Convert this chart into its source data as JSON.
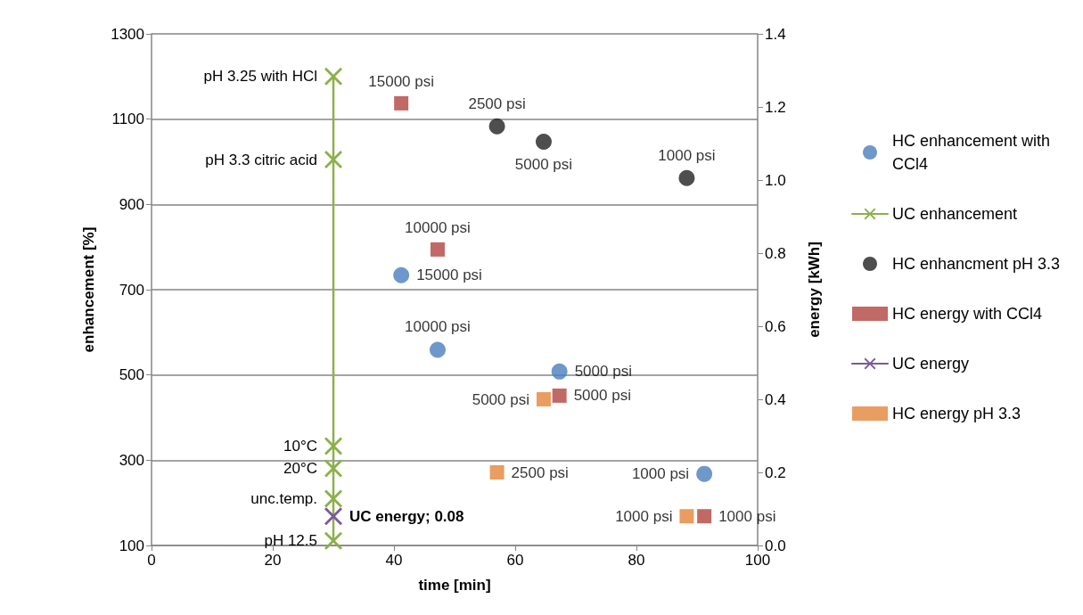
{
  "chart_data": {
    "type": "scatter",
    "xlabel": "time [min]",
    "ylabel": "enhancement [%]",
    "y2label": "energy [kWh]",
    "xlim": [
      0,
      100
    ],
    "xticks": [
      0,
      20,
      40,
      60,
      80,
      100
    ],
    "ylim": [
      100,
      1300
    ],
    "yticks": [
      100,
      300,
      500,
      700,
      900,
      1100,
      1300
    ],
    "y2lim": [
      0,
      1.4
    ],
    "y2ticks": [
      {
        "value": 0,
        "label": "0.0"
      },
      {
        "value": 0.2,
        "label": "0.2"
      },
      {
        "value": 0.4,
        "label": "0.4"
      },
      {
        "value": 0.6,
        "label": "0.6"
      },
      {
        "value": 0.8,
        "label": "0.8"
      },
      {
        "value": 1.0,
        "label": "1.0"
      },
      {
        "value": 1.2,
        "label": "1.2"
      },
      {
        "value": 1.4,
        "label": "1.4"
      }
    ],
    "grid": "y",
    "legend": "right",
    "series": [
      {
        "name": "HC enhancement with CCl4",
        "type": "scatter",
        "marker": "circle",
        "color": "#4a7ebb",
        "x": [
          41.2,
          47.2,
          67.3,
          91.2
        ],
        "values": [
          734,
          559,
          508,
          268
        ]
      },
      {
        "name": "UC enhancement",
        "type": "line",
        "marker": "cross",
        "line_style": "solid",
        "color": "#8cb04a",
        "x": [
          30,
          30,
          30,
          30,
          30,
          30
        ],
        "values": [
          1200,
          1005,
          333,
          281,
          210,
          111
        ]
      },
      {
        "name": "HC enhancment pH 3.3",
        "type": "scatter",
        "marker": "circle",
        "color": "#222222",
        "x": [
          57.0,
          64.7,
          88.3
        ],
        "values": [
          1083,
          1047,
          962
        ]
      },
      {
        "name": "HC energy with CCl4",
        "type": "scatter",
        "marker": "square",
        "color": "#b2433f",
        "axis": "y2",
        "x": [
          41.2,
          47.2,
          67.3,
          91.2
        ],
        "values": [
          1.21,
          0.81,
          0.41,
          0.08
        ]
      },
      {
        "name": "UC energy",
        "type": "line",
        "marker": "cross",
        "line_style": "solid",
        "color": "#7a5a9a",
        "axis": "y2",
        "x": [
          30
        ],
        "values": [
          0.08
        ]
      },
      {
        "name": "HC energy pH 3.3",
        "type": "scatter",
        "marker": "square",
        "color": "#e3853a",
        "axis": "y2",
        "x": [
          64.7,
          57.0,
          88.3
        ],
        "values": [
          0.4,
          0.2,
          0.08
        ]
      }
    ],
    "annotations": [
      {
        "text": "15000 psi",
        "x": 41.2,
        "y": 734
      },
      {
        "text": "10000 psi",
        "x": 47.2,
        "y": 559
      },
      {
        "text": "5000 psi",
        "x": 67.3,
        "y": 508
      },
      {
        "text": "1000 psi",
        "x": 91.2,
        "y": 268
      },
      {
        "text": "pH 3.25 with HCl",
        "x": 30,
        "y": 1200
      },
      {
        "text": "pH 3.3 citric acid",
        "x": 30,
        "y": 1005
      },
      {
        "text": "10°C",
        "x": 30,
        "y": 333
      },
      {
        "text": "20°C",
        "x": 30,
        "y": 281
      },
      {
        "text": "unc.temp.",
        "x": 30,
        "y": 210
      },
      {
        "text": "pH 12.5",
        "x": 30,
        "y": 111
      },
      {
        "text": "2500 psi",
        "x": 57.0,
        "y": 1083
      },
      {
        "text": "5000 psi",
        "x": 64.7,
        "y": 1047
      },
      {
        "text": "1000 psi",
        "x": 88.3,
        "y": 962
      },
      {
        "text": "15000 psi",
        "x": 41.2,
        "y": 1137
      },
      {
        "text": "10000 psi",
        "x": 47.2,
        "y": 794
      },
      {
        "text": "5000 psi",
        "x": 67.3,
        "y": 451
      },
      {
        "text": "1000 psi",
        "x": 91.2,
        "y": 169
      },
      {
        "text": "UC energy; 0.08",
        "x": 30,
        "y": 169
      },
      {
        "text": "5000 psi",
        "x": 64.7,
        "y": 443
      },
      {
        "text": "2500 psi",
        "x": 57.0,
        "y": 271
      },
      {
        "text": "1000 psi",
        "x": 88.3,
        "y": 169
      }
    ]
  }
}
